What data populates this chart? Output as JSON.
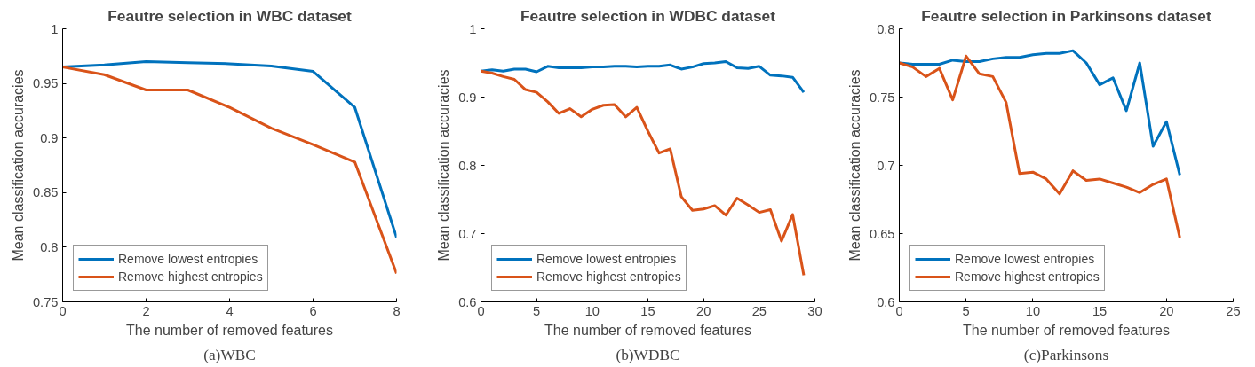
{
  "chart_data": [
    {
      "type": "line",
      "title": "Feautre selection in WBC dataset",
      "xlabel": "The number of removed features",
      "ylabel": "Mean classification accuracies",
      "x": [
        0,
        1,
        2,
        3,
        4,
        5,
        6,
        7,
        8
      ],
      "xlim": [
        0,
        8
      ],
      "xticks": [
        0,
        2,
        4,
        6,
        8
      ],
      "ylim": [
        0.75,
        1
      ],
      "yticks": [
        0.75,
        0.8,
        0.85,
        0.9,
        0.95,
        1
      ],
      "legend": "bottom left",
      "annotations": [
        "(a)WBC"
      ],
      "series": [
        {
          "name": "Remove lowest entropies",
          "color": "#0072bd",
          "values": [
            0.965,
            0.967,
            0.97,
            0.969,
            0.968,
            0.966,
            0.961,
            0.928,
            0.809
          ]
        },
        {
          "name": "Remove highest entropies",
          "color": "#d95319",
          "values": [
            0.965,
            0.958,
            0.944,
            0.944,
            0.928,
            0.909,
            0.894,
            0.878,
            0.776
          ]
        }
      ]
    },
    {
      "type": "line",
      "title": "Feautre selection in WDBC dataset",
      "xlabel": "The number of removed features",
      "ylabel": "Mean classification accuracies",
      "x": [
        0,
        1,
        2,
        3,
        4,
        5,
        6,
        7,
        8,
        9,
        10,
        11,
        12,
        13,
        14,
        15,
        16,
        17,
        18,
        19,
        20,
        21,
        22,
        23,
        24,
        25,
        26,
        27,
        28,
        29
      ],
      "xlim": [
        0,
        30
      ],
      "xticks": [
        0,
        5,
        10,
        15,
        20,
        25,
        30
      ],
      "ylim": [
        0.6,
        1
      ],
      "yticks": [
        0.6,
        0.7,
        0.8,
        0.9,
        1
      ],
      "legend": "bottom left",
      "annotations": [
        "(b)WDBC"
      ],
      "series": [
        {
          "name": "Remove lowest entropies",
          "color": "#0072bd",
          "values": [
            0.938,
            0.94,
            0.938,
            0.941,
            0.941,
            0.937,
            0.945,
            0.943,
            0.943,
            0.943,
            0.944,
            0.944,
            0.945,
            0.945,
            0.944,
            0.945,
            0.945,
            0.947,
            0.941,
            0.944,
            0.949,
            0.95,
            0.952,
            0.943,
            0.942,
            0.945,
            0.932,
            0.931,
            0.929,
            0.907
          ]
        },
        {
          "name": "Remove highest entropies",
          "color": "#d95319",
          "values": [
            0.938,
            0.935,
            0.93,
            0.926,
            0.911,
            0.907,
            0.893,
            0.876,
            0.883,
            0.871,
            0.882,
            0.888,
            0.889,
            0.871,
            0.885,
            0.85,
            0.818,
            0.824,
            0.754,
            0.734,
            0.736,
            0.741,
            0.727,
            0.752,
            0.742,
            0.731,
            0.735,
            0.689,
            0.728,
            0.639
          ]
        }
      ]
    },
    {
      "type": "line",
      "title": "Feautre selection in Parkinsons dataset",
      "xlabel": "The number of removed features",
      "ylabel": "Mean classification accuracies",
      "x": [
        0,
        1,
        2,
        3,
        4,
        5,
        6,
        7,
        8,
        9,
        10,
        11,
        12,
        13,
        14,
        15,
        16,
        17,
        18,
        19,
        20,
        21
      ],
      "xlim": [
        0,
        25
      ],
      "xticks": [
        0,
        5,
        10,
        15,
        20,
        25
      ],
      "ylim": [
        0.6,
        0.8
      ],
      "yticks": [
        0.6,
        0.65,
        0.7,
        0.75,
        0.8
      ],
      "legend": "bottom left",
      "annotations": [
        "(c)Parkinsons"
      ],
      "series": [
        {
          "name": "Remove lowest entropies",
          "color": "#0072bd",
          "values": [
            0.775,
            0.774,
            0.774,
            0.774,
            0.777,
            0.776,
            0.776,
            0.778,
            0.779,
            0.779,
            0.781,
            0.782,
            0.782,
            0.784,
            0.775,
            0.759,
            0.764,
            0.74,
            0.775,
            0.714,
            0.732,
            0.693
          ]
        },
        {
          "name": "Remove highest entropies",
          "color": "#d95319",
          "values": [
            0.775,
            0.772,
            0.765,
            0.771,
            0.748,
            0.78,
            0.767,
            0.765,
            0.746,
            0.694,
            0.695,
            0.69,
            0.679,
            0.696,
            0.689,
            0.69,
            0.687,
            0.684,
            0.68,
            0.686,
            0.69,
            0.647
          ]
        }
      ]
    }
  ]
}
